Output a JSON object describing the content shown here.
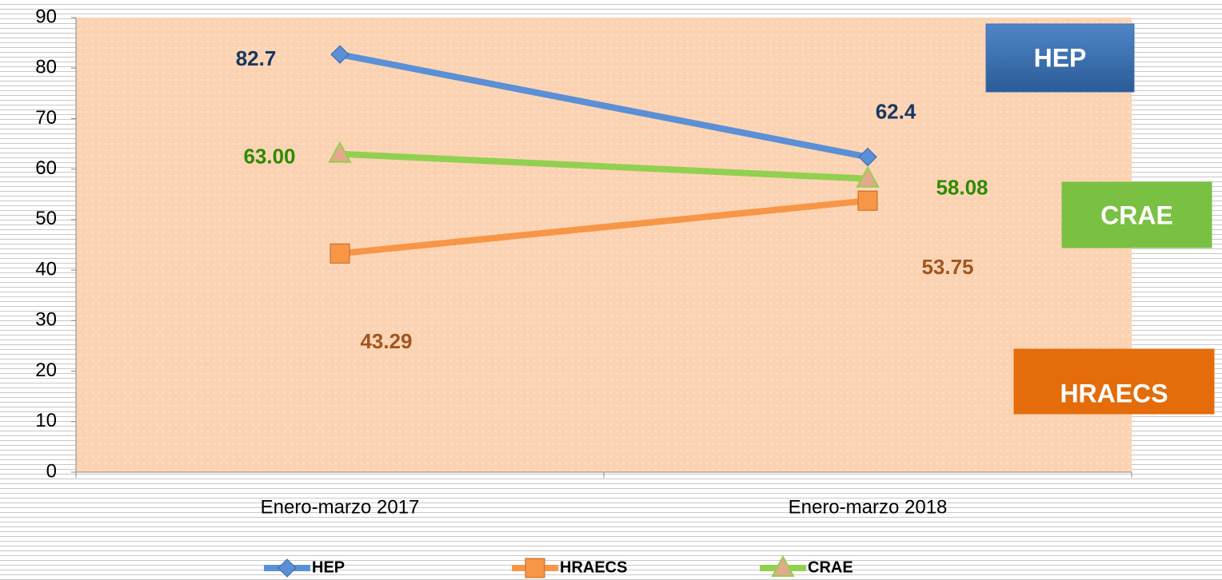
{
  "chart_data": {
    "type": "line",
    "categories": [
      "Enero-marzo 2017",
      "Enero-marzo 2018"
    ],
    "series": [
      {
        "name": "HEP",
        "color": "#5b8fd6",
        "label_color": "#17375e",
        "marker": "diamond",
        "values": [
          82.7,
          62.4
        ]
      },
      {
        "name": "HRAECS",
        "color": "#f79646",
        "label_color": "#a0561f",
        "marker": "square",
        "values": [
          43.29,
          53.75
        ]
      },
      {
        "name": "CRAE",
        "color": "#92d050",
        "label_color": "#2e8b00",
        "marker": "triangle",
        "values": [
          63.0,
          58.08
        ],
        "value_labels": [
          "63.00",
          "58.08"
        ]
      }
    ],
    "ylim": [
      0,
      90
    ],
    "yticks": [
      0,
      10,
      20,
      30,
      40,
      50,
      60,
      70,
      80,
      90
    ],
    "annotations": [
      {
        "text": "HEP",
        "color": "#3a6fb0"
      },
      {
        "text": "CRAE",
        "color": "#7ac143"
      },
      {
        "text": "HRAECS",
        "color": "#e46c0a"
      }
    ],
    "legend": "bottom"
  }
}
